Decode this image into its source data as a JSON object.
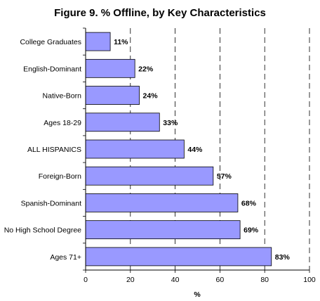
{
  "chart_data": {
    "type": "bar",
    "orientation": "horizontal",
    "title": "Figure 9. % Offline, by Key Characteristics",
    "categories": [
      "College Graduates",
      "English-Dominant",
      "Native-Born",
      "Ages 18-29",
      "ALL HISPANICS",
      "Foreign-Born",
      "Spanish-Dominant",
      "No High School Degree",
      "Ages 71+"
    ],
    "values": [
      11,
      22,
      24,
      33,
      44,
      57,
      68,
      69,
      83
    ],
    "data_labels": [
      "11%",
      "22%",
      "24%",
      "33%",
      "44%",
      "57%",
      "68%",
      "69%",
      "83%"
    ],
    "xlabel": "%",
    "ylabel": "",
    "xlim": [
      0,
      100
    ],
    "xticks": [
      0,
      20,
      40,
      60,
      80,
      100
    ],
    "xtick_labels": [
      "0",
      "20",
      "40",
      "60",
      "80",
      "100"
    ],
    "grid": "vertical dashed",
    "legend": "none",
    "bar_color": "#9999ff",
    "bar_border_color": "#000000"
  }
}
